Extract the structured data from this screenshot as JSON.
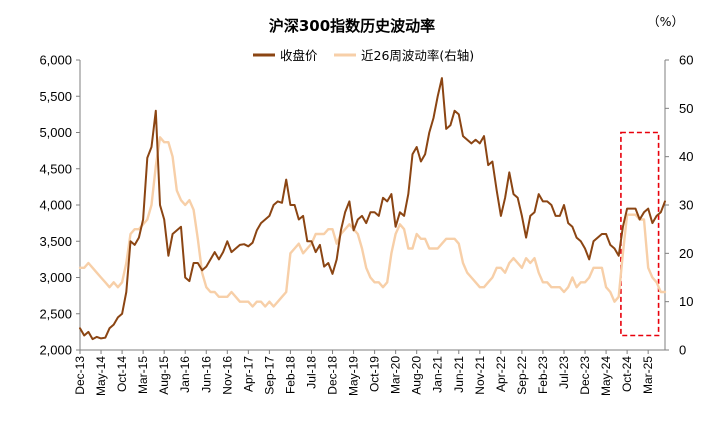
{
  "chart_data": {
    "type": "line",
    "title": "沪深300指数历史波动率",
    "right_unit": "（%）",
    "legend_position": "top-center",
    "x_tick_labels": [
      "Dec-13",
      "May-14",
      "Oct-14",
      "Mar-15",
      "Aug-15",
      "Jan-16",
      "Jun-16",
      "Nov-16",
      "Apr-17",
      "Sep-17",
      "Feb-18",
      "Jul-18",
      "Dec-18",
      "May-19",
      "Oct-19",
      "Mar-20",
      "Aug-20",
      "Jan-21",
      "Jun-21",
      "Nov-21",
      "Apr-22",
      "Sep-22",
      "Feb-23",
      "Jul-23",
      "Dec-23",
      "May-24",
      "Oct-24",
      "Mar-25"
    ],
    "y_left": {
      "min": 2000,
      "max": 6000,
      "ticks": [
        2000,
        2500,
        3000,
        3500,
        4000,
        4500,
        5000,
        5500,
        6000
      ],
      "tick_labels": [
        "2,000",
        "2,500",
        "3,000",
        "3,500",
        "4,000",
        "4,500",
        "5,000",
        "5,500",
        "6,000"
      ]
    },
    "y_right": {
      "min": 0,
      "max": 60,
      "ticks": [
        0,
        10,
        20,
        30,
        40,
        50,
        60
      ],
      "tick_labels": [
        "0",
        "10",
        "20",
        "30",
        "40",
        "50",
        "60"
      ]
    },
    "highlight": {
      "from": "Sep-24",
      "to": "May-25",
      "color": "#e8000b",
      "style": "dashed"
    },
    "series": [
      {
        "name": "收盘价",
        "axis": "left",
        "color": "#8b4513",
        "values": [
          [
            "2013-12",
            2300
          ],
          [
            "2014-01",
            2200
          ],
          [
            "2014-02",
            2250
          ],
          [
            "2014-03",
            2150
          ],
          [
            "2014-04",
            2180
          ],
          [
            "2014-05",
            2160
          ],
          [
            "2014-06",
            2170
          ],
          [
            "2014-07",
            2300
          ],
          [
            "2014-08",
            2350
          ],
          [
            "2014-09",
            2450
          ],
          [
            "2014-10",
            2500
          ],
          [
            "2014-11",
            2800
          ],
          [
            "2014-12",
            3500
          ],
          [
            "2015-01",
            3450
          ],
          [
            "2015-02",
            3550
          ],
          [
            "2015-03",
            3800
          ],
          [
            "2015-04",
            4650
          ],
          [
            "2015-05",
            4800
          ],
          [
            "2015-06",
            5300
          ],
          [
            "2015-07",
            4000
          ],
          [
            "2015-08",
            3800
          ],
          [
            "2015-09",
            3300
          ],
          [
            "2015-10",
            3600
          ],
          [
            "2015-11",
            3650
          ],
          [
            "2015-12",
            3700
          ],
          [
            "2016-01",
            3000
          ],
          [
            "2016-02",
            2950
          ],
          [
            "2016-03",
            3200
          ],
          [
            "2016-04",
            3200
          ],
          [
            "2016-05",
            3100
          ],
          [
            "2016-06",
            3150
          ],
          [
            "2016-07",
            3250
          ],
          [
            "2016-08",
            3350
          ],
          [
            "2016-09",
            3250
          ],
          [
            "2016-10",
            3350
          ],
          [
            "2016-11",
            3500
          ],
          [
            "2016-12",
            3350
          ],
          [
            "2017-01",
            3400
          ],
          [
            "2017-02",
            3450
          ],
          [
            "2017-03",
            3460
          ],
          [
            "2017-04",
            3430
          ],
          [
            "2017-05",
            3480
          ],
          [
            "2017-06",
            3650
          ],
          [
            "2017-07",
            3750
          ],
          [
            "2017-08",
            3800
          ],
          [
            "2017-09",
            3850
          ],
          [
            "2017-10",
            4000
          ],
          [
            "2017-11",
            4050
          ],
          [
            "2017-12",
            4030
          ],
          [
            "2018-01",
            4350
          ],
          [
            "2018-02",
            4000
          ],
          [
            "2018-03",
            4000
          ],
          [
            "2018-04",
            3800
          ],
          [
            "2018-05",
            3850
          ],
          [
            "2018-06",
            3500
          ],
          [
            "2018-07",
            3500
          ],
          [
            "2018-08",
            3350
          ],
          [
            "2018-09",
            3450
          ],
          [
            "2018-10",
            3150
          ],
          [
            "2018-11",
            3200
          ],
          [
            "2018-12",
            3050
          ],
          [
            "2019-01",
            3250
          ],
          [
            "2019-02",
            3650
          ],
          [
            "2019-03",
            3900
          ],
          [
            "2019-04",
            4050
          ],
          [
            "2019-05",
            3650
          ],
          [
            "2019-06",
            3800
          ],
          [
            "2019-07",
            3850
          ],
          [
            "2019-08",
            3750
          ],
          [
            "2019-09",
            3900
          ],
          [
            "2019-10",
            3900
          ],
          [
            "2019-11",
            3850
          ],
          [
            "2019-12",
            4100
          ],
          [
            "2020-01",
            4050
          ],
          [
            "2020-02",
            4150
          ],
          [
            "2020-03",
            3700
          ],
          [
            "2020-04",
            3900
          ],
          [
            "2020-05",
            3850
          ],
          [
            "2020-06",
            4150
          ],
          [
            "2020-07",
            4700
          ],
          [
            "2020-08",
            4800
          ],
          [
            "2020-09",
            4600
          ],
          [
            "2020-10",
            4700
          ],
          [
            "2020-11",
            5000
          ],
          [
            "2020-12",
            5200
          ],
          [
            "2021-01",
            5500
          ],
          [
            "2021-02",
            5750
          ],
          [
            "2021-03",
            5050
          ],
          [
            "2021-04",
            5100
          ],
          [
            "2021-05",
            5300
          ],
          [
            "2021-06",
            5250
          ],
          [
            "2021-07",
            4950
          ],
          [
            "2021-08",
            4900
          ],
          [
            "2021-09",
            4850
          ],
          [
            "2021-10",
            4900
          ],
          [
            "2021-11",
            4850
          ],
          [
            "2021-12",
            4950
          ],
          [
            "2022-01",
            4550
          ],
          [
            "2022-02",
            4600
          ],
          [
            "2022-03",
            4200
          ],
          [
            "2022-04",
            3850
          ],
          [
            "2022-05",
            4100
          ],
          [
            "2022-06",
            4450
          ],
          [
            "2022-07",
            4150
          ],
          [
            "2022-08",
            4100
          ],
          [
            "2022-09",
            3850
          ],
          [
            "2022-10",
            3550
          ],
          [
            "2022-11",
            3850
          ],
          [
            "2022-12",
            3900
          ],
          [
            "2023-01",
            4150
          ],
          [
            "2023-02",
            4050
          ],
          [
            "2023-03",
            4050
          ],
          [
            "2023-04",
            4000
          ],
          [
            "2023-05",
            3850
          ],
          [
            "2023-06",
            3850
          ],
          [
            "2023-07",
            4000
          ],
          [
            "2023-08",
            3750
          ],
          [
            "2023-09",
            3700
          ],
          [
            "2023-10",
            3550
          ],
          [
            "2023-11",
            3500
          ],
          [
            "2023-12",
            3400
          ],
          [
            "2024-01",
            3250
          ],
          [
            "2024-02",
            3500
          ],
          [
            "2024-03",
            3550
          ],
          [
            "2024-04",
            3600
          ],
          [
            "2024-05",
            3600
          ],
          [
            "2024-06",
            3450
          ],
          [
            "2024-07",
            3400
          ],
          [
            "2024-08",
            3300
          ],
          [
            "2024-09",
            3700
          ],
          [
            "2024-10",
            3950
          ],
          [
            "2024-11",
            3950
          ],
          [
            "2024-12",
            3950
          ],
          [
            "2025-01",
            3800
          ],
          [
            "2025-02",
            3900
          ],
          [
            "2025-03",
            3950
          ],
          [
            "2025-04",
            3750
          ],
          [
            "2025-05",
            3850
          ],
          [
            "2025-06",
            3900
          ],
          [
            "2025-07",
            4050
          ]
        ]
      },
      {
        "name": "近26周波动率(右轴)",
        "axis": "right",
        "color": "#f7cfa8",
        "values": [
          [
            "2013-12",
            17
          ],
          [
            "2014-01",
            17
          ],
          [
            "2014-02",
            18
          ],
          [
            "2014-03",
            17
          ],
          [
            "2014-04",
            16
          ],
          [
            "2014-05",
            15
          ],
          [
            "2014-06",
            14
          ],
          [
            "2014-07",
            13
          ],
          [
            "2014-08",
            14
          ],
          [
            "2014-09",
            13
          ],
          [
            "2014-10",
            14
          ],
          [
            "2014-11",
            18
          ],
          [
            "2014-12",
            24
          ],
          [
            "2015-01",
            25
          ],
          [
            "2015-02",
            25
          ],
          [
            "2015-03",
            26
          ],
          [
            "2015-04",
            27
          ],
          [
            "2015-05",
            30
          ],
          [
            "2015-06",
            38
          ],
          [
            "2015-07",
            44
          ],
          [
            "2015-08",
            43
          ],
          [
            "2015-09",
            43
          ],
          [
            "2015-10",
            40
          ],
          [
            "2015-11",
            33
          ],
          [
            "2015-12",
            31
          ],
          [
            "2016-01",
            30
          ],
          [
            "2016-02",
            31
          ],
          [
            "2016-03",
            29
          ],
          [
            "2016-04",
            23
          ],
          [
            "2016-05",
            16
          ],
          [
            "2016-06",
            13
          ],
          [
            "2016-07",
            12
          ],
          [
            "2016-08",
            12
          ],
          [
            "2016-09",
            11
          ],
          [
            "2016-10",
            11
          ],
          [
            "2016-11",
            11
          ],
          [
            "2016-12",
            12
          ],
          [
            "2017-01",
            11
          ],
          [
            "2017-02",
            10
          ],
          [
            "2017-03",
            10
          ],
          [
            "2017-04",
            10
          ],
          [
            "2017-05",
            9
          ],
          [
            "2017-06",
            10
          ],
          [
            "2017-07",
            10
          ],
          [
            "2017-08",
            9
          ],
          [
            "2017-09",
            10
          ],
          [
            "2017-10",
            9
          ],
          [
            "2017-11",
            10
          ],
          [
            "2017-12",
            11
          ],
          [
            "2018-01",
            12
          ],
          [
            "2018-02",
            20
          ],
          [
            "2018-03",
            21
          ],
          [
            "2018-04",
            22
          ],
          [
            "2018-05",
            20
          ],
          [
            "2018-06",
            21
          ],
          [
            "2018-07",
            22
          ],
          [
            "2018-08",
            24
          ],
          [
            "2018-09",
            24
          ],
          [
            "2018-10",
            24
          ],
          [
            "2018-11",
            25
          ],
          [
            "2018-12",
            25
          ],
          [
            "2019-01",
            22
          ],
          [
            "2019-02",
            24
          ],
          [
            "2019-03",
            25
          ],
          [
            "2019-04",
            26
          ],
          [
            "2019-05",
            25
          ],
          [
            "2019-06",
            24
          ],
          [
            "2019-07",
            21
          ],
          [
            "2019-08",
            17
          ],
          [
            "2019-09",
            15
          ],
          [
            "2019-10",
            14
          ],
          [
            "2019-11",
            14
          ],
          [
            "2019-12",
            13
          ],
          [
            "2020-01",
            14
          ],
          [
            "2020-02",
            20
          ],
          [
            "2020-03",
            24
          ],
          [
            "2020-04",
            26
          ],
          [
            "2020-05",
            25
          ],
          [
            "2020-06",
            21
          ],
          [
            "2020-07",
            21
          ],
          [
            "2020-08",
            24
          ],
          [
            "2020-09",
            23
          ],
          [
            "2020-10",
            23
          ],
          [
            "2020-11",
            21
          ],
          [
            "2020-12",
            21
          ],
          [
            "2021-01",
            21
          ],
          [
            "2021-02",
            22
          ],
          [
            "2021-03",
            23
          ],
          [
            "2021-04",
            23
          ],
          [
            "2021-05",
            23
          ],
          [
            "2021-06",
            22
          ],
          [
            "2021-07",
            18
          ],
          [
            "2021-08",
            16
          ],
          [
            "2021-09",
            15
          ],
          [
            "2021-10",
            14
          ],
          [
            "2021-11",
            13
          ],
          [
            "2021-12",
            13
          ],
          [
            "2022-01",
            14
          ],
          [
            "2022-02",
            15
          ],
          [
            "2022-03",
            17
          ],
          [
            "2022-04",
            17
          ],
          [
            "2022-05",
            16
          ],
          [
            "2022-06",
            18
          ],
          [
            "2022-07",
            19
          ],
          [
            "2022-08",
            18
          ],
          [
            "2022-09",
            17
          ],
          [
            "2022-10",
            19
          ],
          [
            "2022-11",
            18
          ],
          [
            "2022-12",
            19
          ],
          [
            "2023-01",
            16
          ],
          [
            "2023-02",
            14
          ],
          [
            "2023-03",
            14
          ],
          [
            "2023-04",
            13
          ],
          [
            "2023-05",
            13
          ],
          [
            "2023-06",
            13
          ],
          [
            "2023-07",
            12
          ],
          [
            "2023-08",
            13
          ],
          [
            "2023-09",
            15
          ],
          [
            "2023-10",
            13
          ],
          [
            "2023-11",
            14
          ],
          [
            "2023-12",
            14
          ],
          [
            "2024-01",
            15
          ],
          [
            "2024-02",
            17
          ],
          [
            "2024-03",
            17
          ],
          [
            "2024-04",
            17
          ],
          [
            "2024-05",
            13
          ],
          [
            "2024-06",
            12
          ],
          [
            "2024-07",
            10
          ],
          [
            "2024-08",
            11
          ],
          [
            "2024-09",
            20
          ],
          [
            "2024-10",
            28
          ],
          [
            "2024-11",
            28
          ],
          [
            "2024-12",
            28
          ],
          [
            "2025-01",
            27
          ],
          [
            "2025-02",
            27
          ],
          [
            "2025-03",
            17
          ],
          [
            "2025-04",
            15
          ],
          [
            "2025-05",
            14
          ],
          [
            "2025-06",
            12
          ],
          [
            "2025-07",
            12
          ]
        ]
      }
    ]
  }
}
